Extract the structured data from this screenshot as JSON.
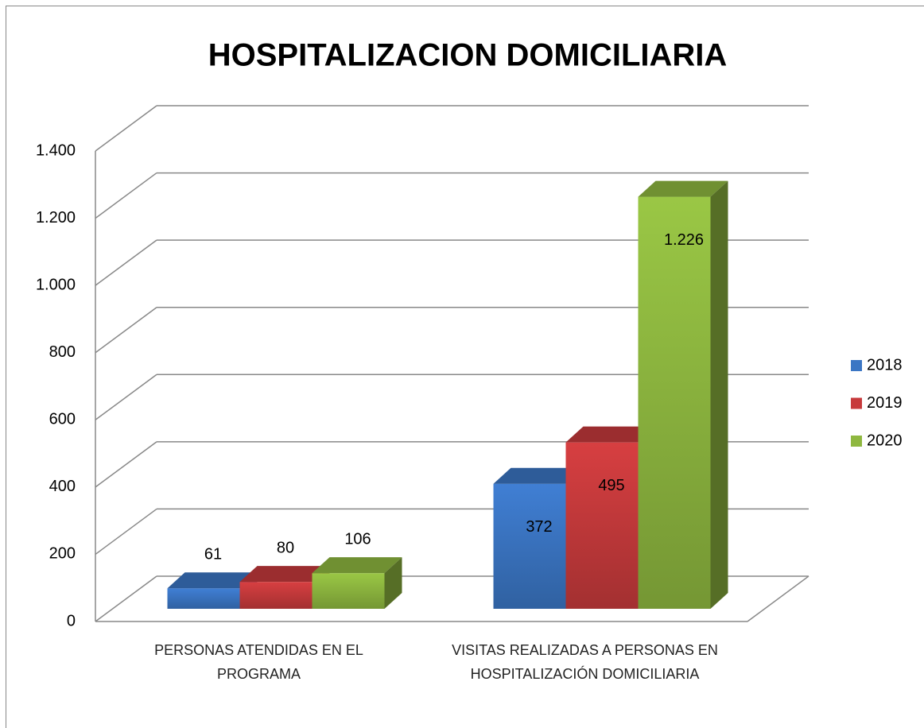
{
  "chart_data": {
    "type": "bar3d",
    "title": "HOSPITALIZACION DOMICILIARIA",
    "categories": [
      "PERSONAS ATENDIDAS EN EL PROGRAMA",
      "VISITAS REALIZADAS A PERSONAS EN HOSPITALIZACIÓN DOMICILIARIA"
    ],
    "series": [
      {
        "name": "2018",
        "color": "#3b76c4",
        "values": [
          61,
          372
        ]
      },
      {
        "name": "2019",
        "color": "#c73a3c",
        "values": [
          80,
          495
        ]
      },
      {
        "name": "2020",
        "color": "#8fb840",
        "values": [
          106,
          1226
        ],
        "value_labels": [
          "106",
          "1.226"
        ]
      }
    ],
    "ylim": [
      0,
      1400
    ],
    "yticks": [
      0,
      200,
      400,
      600,
      800,
      {
        "value": 1000,
        "label": "1.000"
      },
      {
        "value": 1200,
        "label": "1.200"
      },
      {
        "value": 1400,
        "label": "1.400"
      }
    ],
    "grid": true,
    "legend": "right"
  }
}
